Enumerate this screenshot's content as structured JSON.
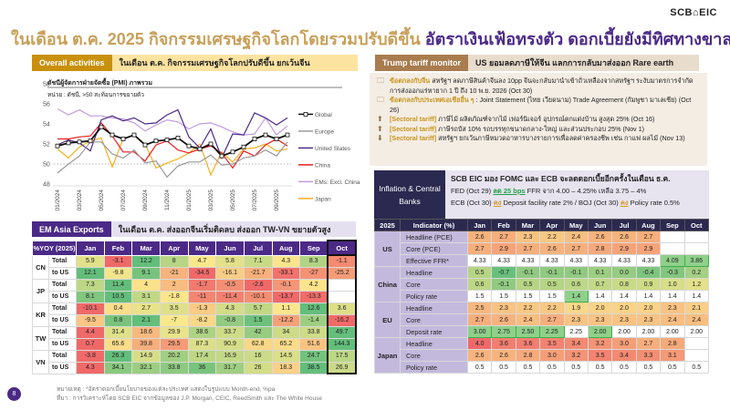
{
  "logo": "SCB⌂EIC",
  "title": {
    "part1": "ในเดือน ต.ค. 2025 กิจกรรมเศรษฐกิจโลกโดยรวมปรับดีขึ้น",
    "part2": "อัตราเงินเฟ้อทรงตัว ดอกเบี้ยยังมีทิศทางขาลง"
  },
  "colors": {
    "gold": "#c8951e",
    "purple": "#4b2a87",
    "navy": "#2b2950",
    "tariff_tag": "#a87c4f"
  },
  "overall": {
    "tag": "Overall activities",
    "text": "ในเดือน ต.ค. กิจกรรมเศรษฐกิจโลกปรับดีขึ้น ยกเว้นจีน"
  },
  "chart_data": {
    "type": "line",
    "title": "ดัชนีผู้จัดการฝ่ายจัดซื้อ (PMI) ภาพรวม",
    "subtitle": "หน่วย : ดัชนี, >50 สะท้อนการขยายตัว",
    "ylim": [
      48,
      58
    ],
    "yticks": [
      "48",
      "50",
      "52",
      "54",
      "56",
      "58"
    ],
    "xtick_labels": [
      "01/2024",
      "03/2024",
      "05/2024",
      "07/2024",
      "09/2024",
      "11/2024",
      "01/2025",
      "03/2025",
      "05/2025",
      "07/2025",
      "09/2025"
    ],
    "n_points": 22,
    "reference_line": 50,
    "legend": "right",
    "series": [
      {
        "name": "Global",
        "color": "#111111",
        "marker": "square",
        "values": [
          51.8,
          52.1,
          52.2,
          52.3,
          53.7,
          52.9,
          52.5,
          52.9,
          51.9,
          52.3,
          52.4,
          52.6,
          51.8,
          51.5,
          52.0,
          50.8,
          51.2,
          51.7,
          52.5,
          52.9,
          52.5,
          52.9
        ]
      },
      {
        "name": "Europe",
        "color": "#9a9a9a",
        "values": [
          49.1,
          50.0,
          50.8,
          52.2,
          52.2,
          51.0,
          50.6,
          51.4,
          50.1,
          50.3,
          48.7,
          49.8,
          50.2,
          50.2,
          50.9,
          49.9,
          50.0,
          50.6,
          50.8,
          51.4,
          50.8,
          52.2
        ]
      },
      {
        "name": "United States",
        "color": "#4b2a87",
        "values": [
          51.9,
          52.4,
          52.1,
          51.3,
          54.4,
          54.8,
          54.3,
          54.6,
          54.0,
          54.1,
          54.9,
          55.4,
          52.7,
          51.6,
          53.5,
          50.6,
          53.0,
          52.9,
          55.1,
          54.6,
          53.9,
          54.6
        ]
      },
      {
        "name": "China",
        "color": "#ee1c1c",
        "values": [
          52.5,
          52.5,
          52.7,
          52.8,
          54.1,
          52.8,
          51.2,
          51.2,
          50.3,
          51.9,
          52.3,
          51.4,
          51.1,
          51.5,
          51.8,
          51.1,
          49.6,
          51.3,
          50.8,
          51.9,
          52.5,
          51.8
        ]
      },
      {
        "name": "EMs: Excl. China",
        "color": "#c39be0",
        "values": [
          55.5,
          54.9,
          55.4,
          54.8,
          54.8,
          54.6,
          54.5,
          54.1,
          53.3,
          53.9,
          54.4,
          54.2,
          53.5,
          54.0,
          54.1,
          53.7,
          53.2,
          52.9,
          53.0,
          54.6,
          52.9,
          53.8
        ]
      },
      {
        "name": "Japan",
        "color": "#f5b11e",
        "values": [
          51.5,
          50.6,
          51.7,
          52.3,
          52.6,
          49.7,
          52.5,
          52.9,
          52.0,
          49.6,
          50.1,
          50.5,
          51.1,
          52.0,
          48.9,
          51.2,
          50.2,
          51.5,
          51.6,
          52.0,
          51.3,
          51.5
        ]
      }
    ]
  },
  "em": {
    "tag": "EM Asia Exports",
    "text": "ในเดือน ต.ค. ส่งออกจีนเริ่มติดลบ ส่งออก TW-VN ขยายตัวสูง",
    "corner": "%YOY (2025)",
    "months": [
      "Jan",
      "Feb",
      "Mar",
      "Apr",
      "May",
      "Jun",
      "Jul",
      "Aug",
      "Sep",
      "Oct"
    ],
    "countries": [
      {
        "code": "CN",
        "rows": [
          {
            "label": "Total",
            "values": [
              5.9,
              -3.1,
              12.2,
              8.0,
              4.7,
              5.8,
              7.1,
              4.3,
              8.3,
              -1.1
            ]
          },
          {
            "label": "to US",
            "values": [
              12.1,
              -9.8,
              9.1,
              -21.0,
              -34.5,
              -16.1,
              -21.7,
              -33.1,
              -27.0,
              -25.2
            ]
          }
        ]
      },
      {
        "code": "JP",
        "rows": [
          {
            "label": "Total",
            "values": [
              7.3,
              11.4,
              4.0,
              2.0,
              -1.7,
              -0.5,
              -2.6,
              -0.1,
              4.2,
              null
            ]
          },
          {
            "label": "to US",
            "values": [
              8.1,
              10.5,
              3.1,
              -1.8,
              -11.0,
              -11.4,
              -10.1,
              -13.7,
              -13.3,
              null
            ]
          }
        ]
      },
      {
        "code": "KR",
        "rows": [
          {
            "label": "Total",
            "values": [
              -10.1,
              0.4,
              2.7,
              3.5,
              -1.3,
              4.3,
              5.7,
              1.1,
              12.6,
              3.6
            ]
          },
          {
            "label": "to US",
            "values": [
              -9.5,
              0.8,
              2.1,
              -7.0,
              -8.2,
              -0.8,
              1.5,
              -12.2,
              -1.4,
              -16.2
            ]
          }
        ]
      },
      {
        "code": "TW",
        "rows": [
          {
            "label": "Total",
            "values": [
              4.4,
              31.4,
              18.6,
              29.9,
              38.6,
              33.7,
              42.0,
              34.0,
              33.8,
              49.7
            ]
          },
          {
            "label": "to US",
            "values": [
              0.7,
              65.6,
              39.8,
              29.5,
              87.3,
              90.9,
              62.8,
              65.2,
              51.6,
              144.3
            ]
          }
        ]
      },
      {
        "code": "VN",
        "rows": [
          {
            "label": "Total",
            "values": [
              -3.8,
              26.3,
              14.9,
              20.2,
              17.4,
              16.9,
              16.0,
              14.5,
              24.7,
              17.5
            ]
          },
          {
            "label": "to US",
            "values": [
              4.3,
              34.1,
              32.1,
              33.8,
              36.0,
              31.7,
              26.0,
              18.3,
              38.5,
              26.9
            ]
          }
        ]
      }
    ]
  },
  "tariff": {
    "tag": "Trump tariff monitor",
    "text": "US ยอมลดภาษีให้จีน แลกการกลับมาส่งออก Rare earth",
    "items": [
      {
        "icon": "folder-icon",
        "lead": "ข้อตกลงกับจีน",
        "text": " สหรัฐฯ ลดภาษีสินค้าจีนลง 10pp จีนจะกลับมานำเข้าถั่วเหลืองจากสหรัฐฯ ระงับมาตรการจำกัดการส่งออกแร่หายาก 1 ปี ถึง 10 พ.ย. 2026 (Oct 30)"
      },
      {
        "icon": "folder-icon",
        "lead": "ข้อตกลงกับประเทศเอเชียอื่น ๆ",
        "text": " : Joint Statement (ไทย เวียดนาม) Trade Agreement (กัมพูชา มาเลเซีย) (Oct 26)"
      },
      {
        "icon": "arrow-up-icon",
        "lead": "[Sectoral tariff]",
        "text": " ภาษีไม้ ผลิตภัณฑ์จากไม้ เฟอร์นิเจอร์ อุปกรณ์ตกแต่งบ้าน สูงสุด 25% (Oct 16)"
      },
      {
        "icon": "arrow-up-icon",
        "lead": "[Sectoral tariff]",
        "text": " ภาษีรถบัส 10% รถบรรทุกขนาดกลาง-ใหญ่ และส่วนประกอบ 25% (Nov 1)"
      },
      {
        "icon": "arrow-down-icon",
        "lead": "[Sectoral tariff]",
        "text": " สหรัฐฯ ยกเว้นภาษีหมวดอาหารบางรายการเพื่อลดค่าครองชีพ เช่น กาแฟ ผลไม้ (Nov 13)"
      }
    ]
  },
  "cb": {
    "tag": "Inflation & Central Banks",
    "headline": "SCB EIC มอง FOMC และ ECB จะลดดอกเบี้ยอีกครั้งในเดือน ธ.ค.",
    "fed": {
      "a": "FED (Oct 29) ",
      "cut": "ลด 25 bps",
      "b": " FFR จาก 4.00 – 4.25% เหลือ 3.75 – 4%"
    },
    "ecb": {
      "a": "ECB (Oct 30) ",
      "hold1": "คง",
      "b": " Deposit facility rate 2% / BOJ (Oct 30) ",
      "hold2": "คง",
      "c": " Policy rate 0.5%"
    },
    "year": "2025",
    "indicator_header": "Indicator (%)",
    "months": [
      "Jan",
      "Feb",
      "Mar",
      "Apr",
      "May",
      "Jun",
      "Jul",
      "Aug",
      "Sep",
      "Oct"
    ],
    "groups": [
      {
        "name": "US",
        "rows": [
          {
            "label": "Headline (PCE)",
            "kind": "inflation",
            "values": [
              "2.6",
              "2.7",
              "2.3",
              "2.2",
              "2.4",
              "2.6",
              "2.6",
              "2.7",
              null,
              null
            ]
          },
          {
            "label": "Core (PCE)",
            "kind": "inflation",
            "values": [
              "2.7",
              "2.9",
              "2.7",
              "2.6",
              "2.7",
              "2.8",
              "2.9",
              "2.9",
              null,
              null
            ]
          },
          {
            "label": "Effective FFR*",
            "kind": "rate",
            "values": [
              "4.33",
              "4.33",
              "4.33",
              "4.33",
              "4.33",
              "4.33",
              "4.33",
              "4.33",
              "4.09",
              "3.86"
            ],
            "cuts": [
              8,
              9
            ]
          }
        ]
      },
      {
        "name": "China",
        "rows": [
          {
            "label": "Headline",
            "kind": "inflation",
            "values": [
              "0.5",
              "-0.7",
              "-0.1",
              "-0.1",
              "-0.1",
              "0.1",
              "0.0",
              "-0.4",
              "-0.3",
              "0.2"
            ]
          },
          {
            "label": "Core",
            "kind": "inflation",
            "values": [
              "0.6",
              "-0.1",
              "0.5",
              "0.5",
              "0.6",
              "0.7",
              "0.8",
              "0.9",
              "1.0",
              "1.2"
            ]
          },
          {
            "label": "Policy rate",
            "kind": "rate",
            "values": [
              "1.5",
              "1.5",
              "1.5",
              "1.5",
              "1.4",
              "1.4",
              "1.4",
              "1.4",
              "1.4",
              "1.4"
            ],
            "cuts": [
              4
            ]
          }
        ]
      },
      {
        "name": "EU",
        "rows": [
          {
            "label": "Headline",
            "kind": "inflation",
            "values": [
              "2.5",
              "2.3",
              "2.2",
              "2.2",
              "1.9",
              "2.0",
              "2.0",
              "2.0",
              "2.3",
              "2.1"
            ]
          },
          {
            "label": "Core",
            "kind": "inflation",
            "values": [
              "2.7",
              "2.6",
              "2.4",
              "2.7",
              "2.3",
              "2.3",
              "2.3",
              "2.3",
              "2.4",
              "2.4"
            ]
          },
          {
            "label": "Deposit rate",
            "kind": "rate",
            "values": [
              "3.00",
              "2.75",
              "2.50",
              "2.25",
              "2.25",
              "2.00",
              "2.00",
              "2.00",
              "2.00",
              "2.00"
            ],
            "cuts": [
              0,
              1,
              2,
              3,
              5
            ]
          }
        ]
      },
      {
        "name": "Japan",
        "rows": [
          {
            "label": "Headline",
            "kind": "inflation",
            "values": [
              "4.0",
              "3.6",
              "3.6",
              "3.5",
              "3.4",
              "3.2",
              "3.0",
              "2.7",
              "2.8",
              null
            ]
          },
          {
            "label": "Core",
            "kind": "inflation",
            "values": [
              "2.6",
              "2.6",
              "2.8",
              "3.0",
              "3.2",
              "3.5",
              "3.4",
              "3.3",
              "3.1",
              null
            ]
          },
          {
            "label": "Policy rate",
            "kind": "rate",
            "values": [
              "0.5",
              "0.5",
              "0.5",
              "0.5",
              "0.5",
              "0.5",
              "0.5",
              "0.5",
              "0.5",
              "0.5"
            ],
            "cuts": []
          }
        ]
      }
    ]
  },
  "footer": {
    "note": "หมายเหตุ : *อัตราดอกเบี้ยนโยบายของแต่ละประเทศ แสดงในรูปแบบ Month-end, %pa",
    "source": "ที่มา : การวิเคราะห์โดย SCB EIC จากข้อมูลของ J.P. Morgan, CEIC, ReedSmith และ The White House",
    "page": "8"
  }
}
